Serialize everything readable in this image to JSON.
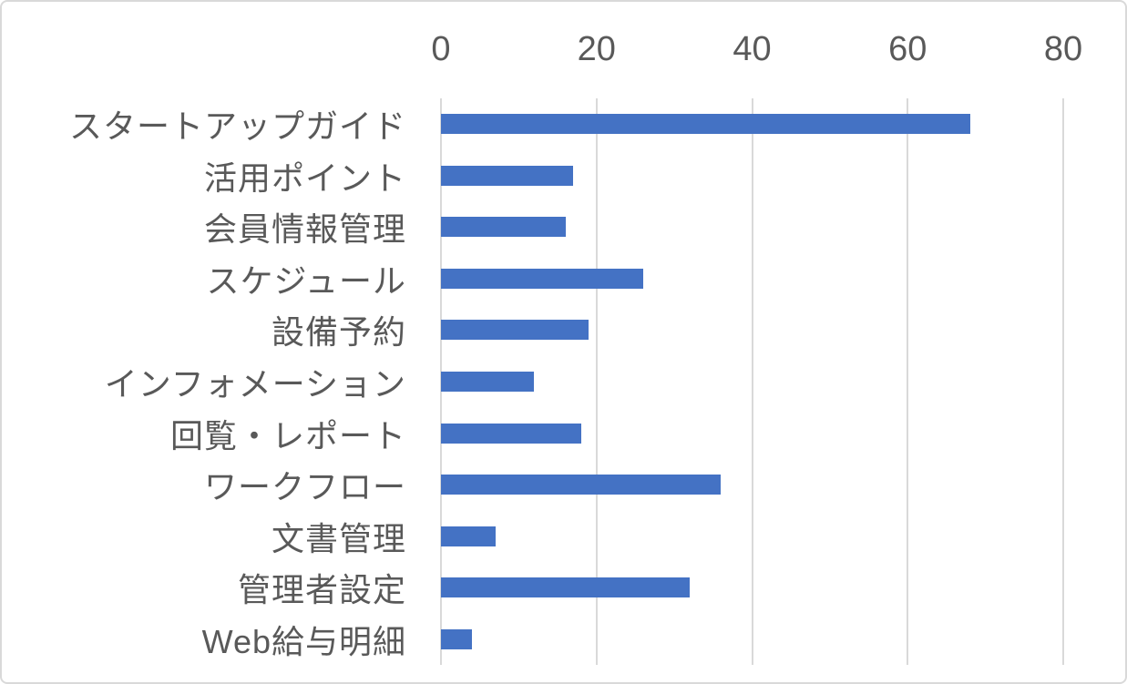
{
  "chart_data": {
    "type": "bar",
    "orientation": "horizontal",
    "title": "",
    "xlabel": "",
    "ylabel": "",
    "categories": [
      "スタートアップガイド",
      "活用ポイント",
      "会員情報管理",
      "スケジュール",
      "設備予約",
      "インフォメーション",
      "回覧・レポート",
      "ワークフロー",
      "文書管理",
      "管理者設定",
      "Web給与明細"
    ],
    "values": [
      68,
      17,
      16,
      26,
      19,
      12,
      18,
      36,
      7,
      32,
      4
    ],
    "xlim": [
      0,
      80
    ],
    "x_ticks": [
      0,
      20,
      40,
      60,
      80
    ],
    "x_tick_labels": [
      "0",
      "20",
      "40",
      "60",
      "80"
    ],
    "grid": true,
    "legend": "none",
    "axis_position": "top",
    "colors": {
      "bar": "#4472c4",
      "gridline": "#d9d9d9",
      "tick_label": "#595959",
      "category_label": "#595959",
      "frame_border": "#d9d9d9",
      "background": "#ffffff"
    }
  }
}
